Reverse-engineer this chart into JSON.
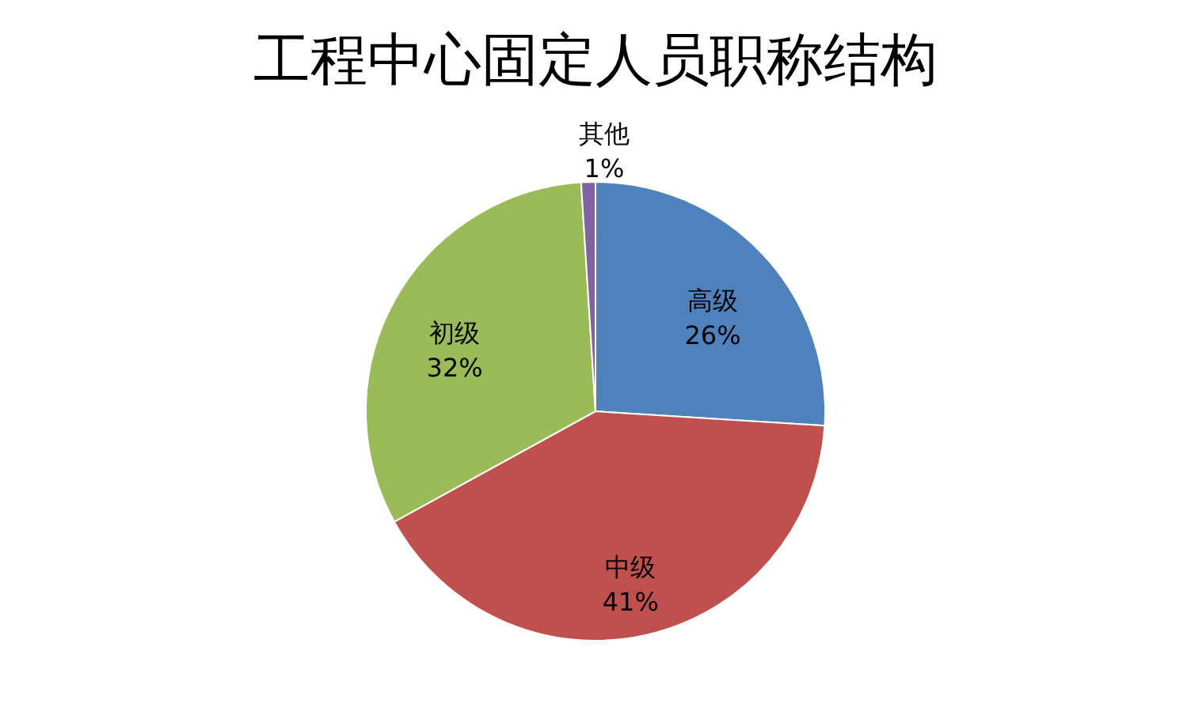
{
  "chart_data": {
    "type": "pie",
    "title": "工程中心固定人员职称结构",
    "categories": [
      "高级",
      "中级",
      "初级",
      "其他"
    ],
    "values": [
      26,
      41,
      32,
      1
    ],
    "value_labels": [
      "26%",
      "41%",
      "32%",
      "1%"
    ],
    "colors": [
      "#4f81bd",
      "#c0504d",
      "#9bbb59",
      "#8064a2"
    ],
    "legend": false
  }
}
